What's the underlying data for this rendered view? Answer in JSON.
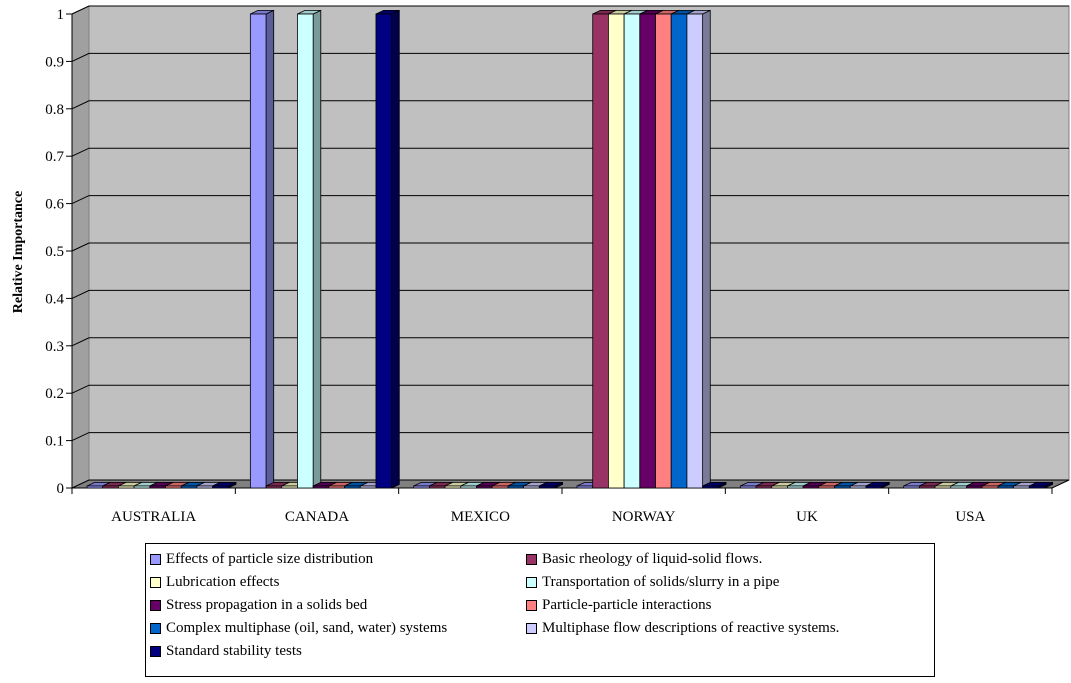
{
  "chart_data": {
    "type": "bar",
    "three_d": true,
    "title": "",
    "xlabel": "",
    "ylabel": "Relative Importance",
    "ylim": [
      0,
      1
    ],
    "yticks": [
      "0",
      "0.1",
      "0.2",
      "0.3",
      "0.4",
      "0.5",
      "0.6",
      "0.7",
      "0.8",
      "0.9",
      "1"
    ],
    "grid": true,
    "legend_position": "bottom",
    "plot_background": "#C0C0C0",
    "categories": [
      "AUSTRALIA",
      "CANADA",
      "MEXICO",
      "NORWAY",
      "UK",
      "USA"
    ],
    "series": [
      {
        "name": "Effects of particle size distribution",
        "color": "#9999FF",
        "values": [
          0,
          1,
          0,
          0,
          0,
          0
        ]
      },
      {
        "name": "Basic rheology of liquid-solid flows.",
        "color": "#993366",
        "values": [
          0,
          0,
          0,
          1,
          0,
          0
        ]
      },
      {
        "name": "Lubrication effects",
        "color": "#FFFFCC",
        "values": [
          0,
          0,
          0,
          1,
          0,
          0
        ]
      },
      {
        "name": "Transportation of solids/slurry in a pipe",
        "color": "#CCFFFF",
        "values": [
          0,
          1,
          0,
          1,
          0,
          0
        ]
      },
      {
        "name": "Stress propagation in a solids bed",
        "color": "#660066",
        "values": [
          0,
          0,
          0,
          1,
          0,
          0
        ]
      },
      {
        "name": "Particle-particle interactions",
        "color": "#FF8080",
        "values": [
          0,
          0,
          0,
          1,
          0,
          0
        ]
      },
      {
        "name": "Complex multiphase (oil, sand, water) systems",
        "color": "#0066CC",
        "values": [
          0,
          0,
          0,
          1,
          0,
          0
        ]
      },
      {
        "name": "Multiphase flow descriptions of reactive systems.",
        "color": "#CCCCFF",
        "values": [
          0,
          0,
          0,
          1,
          0,
          0
        ]
      },
      {
        "name": "Standard stability tests",
        "color": "#000080",
        "values": [
          0,
          1,
          0,
          0,
          0,
          0
        ]
      }
    ]
  }
}
